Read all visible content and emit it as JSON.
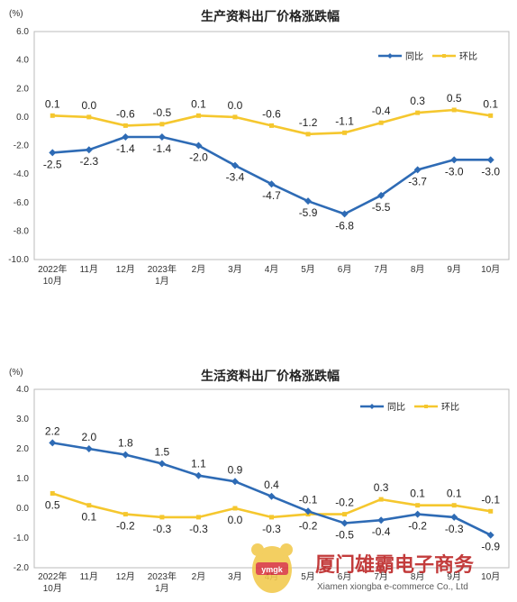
{
  "chart_data": [
    {
      "type": "line",
      "title": "生产资料出厂价格涨跌幅",
      "unit": "(%)",
      "ylim": [
        -10.0,
        6.0
      ],
      "yticks": [
        "6.0",
        "4.0",
        "2.0",
        "0.0",
        "-2.0",
        "-4.0",
        "-6.0",
        "-8.0",
        "-10.0"
      ],
      "categories": [
        [
          "2022年",
          "10月"
        ],
        [
          "11月"
        ],
        [
          "12月"
        ],
        [
          "2023年",
          "1月"
        ],
        [
          "2月"
        ],
        [
          "3月"
        ],
        [
          "4月"
        ],
        [
          "5月"
        ],
        [
          "6月"
        ],
        [
          "7月"
        ],
        [
          "8月"
        ],
        [
          "9月"
        ],
        [
          "10月"
        ]
      ],
      "legend_position": "top-right",
      "grid": false,
      "series": [
        {
          "name": "同比",
          "color": "#2e6bb5",
          "values": [
            -2.5,
            -2.3,
            -1.4,
            -1.4,
            -2.0,
            -3.4,
            -4.7,
            -5.9,
            -6.8,
            -5.5,
            -3.7,
            -3.0,
            -3.0
          ],
          "labels": [
            "-2.5",
            "-2.3",
            "-1.4",
            "-1.4",
            "-2.0",
            "-3.4",
            "-4.7",
            "-5.9",
            "-6.8",
            "-5.5",
            "-3.7",
            "-3.0",
            "-3.0"
          ]
        },
        {
          "name": "环比",
          "color": "#f5c72e",
          "values": [
            0.1,
            0.0,
            -0.6,
            -0.5,
            0.1,
            0.0,
            -0.6,
            -1.2,
            -1.1,
            -0.4,
            0.3,
            0.5,
            0.1
          ],
          "labels": [
            "0.1",
            "0.0",
            "-0.6",
            "-0.5",
            "0.1",
            "0.0",
            "-0.6",
            "-1.2",
            "-1.1",
            "-0.4",
            "0.3",
            "0.5",
            "0.1"
          ]
        }
      ]
    },
    {
      "type": "line",
      "title": "生活资料出厂价格涨跌幅",
      "unit": "(%)",
      "ylim": [
        -2.0,
        4.0
      ],
      "yticks": [
        "4.0",
        "3.0",
        "2.0",
        "1.0",
        "0.0",
        "-1.0",
        "-2.0"
      ],
      "categories": [
        [
          "2022年",
          "10月"
        ],
        [
          "11月"
        ],
        [
          "12月"
        ],
        [
          "2023年",
          "1月"
        ],
        [
          "2月"
        ],
        [
          "3月"
        ],
        [
          "4月"
        ],
        [
          "5月"
        ],
        [
          "6月"
        ],
        [
          "7月"
        ],
        [
          "8月"
        ],
        [
          "9月"
        ],
        [
          "10月"
        ]
      ],
      "legend_position": "top-right",
      "grid": false,
      "series": [
        {
          "name": "同比",
          "color": "#2e6bb5",
          "values": [
            2.2,
            2.0,
            1.8,
            1.5,
            1.1,
            0.9,
            0.4,
            -0.1,
            -0.5,
            -0.4,
            -0.2,
            -0.3,
            -0.9
          ],
          "labels": [
            "2.2",
            "2.0",
            "1.8",
            "1.5",
            "1.1",
            "0.9",
            "0.4",
            "-0.1",
            "-0.5",
            "-0.4",
            "-0.2",
            "-0.3",
            "-0.9"
          ]
        },
        {
          "name": "环比",
          "color": "#f5c72e",
          "values": [
            0.5,
            0.1,
            -0.2,
            -0.3,
            -0.3,
            0.0,
            -0.3,
            -0.2,
            -0.2,
            0.3,
            0.1,
            0.1,
            -0.1
          ],
          "labels": [
            "0.5",
            "0.1",
            "-0.2",
            "-0.3",
            "-0.3",
            "0.0",
            "-0.3",
            "-0.2",
            "-0.2",
            "0.3",
            "0.1",
            "0.1",
            "-0.1"
          ]
        }
      ]
    }
  ],
  "watermark": {
    "company": "厦门雄霸电子商务",
    "company_en": "Xiamen xiongba e-commerce Co., Ltd",
    "logo_text": "ymgk"
  }
}
